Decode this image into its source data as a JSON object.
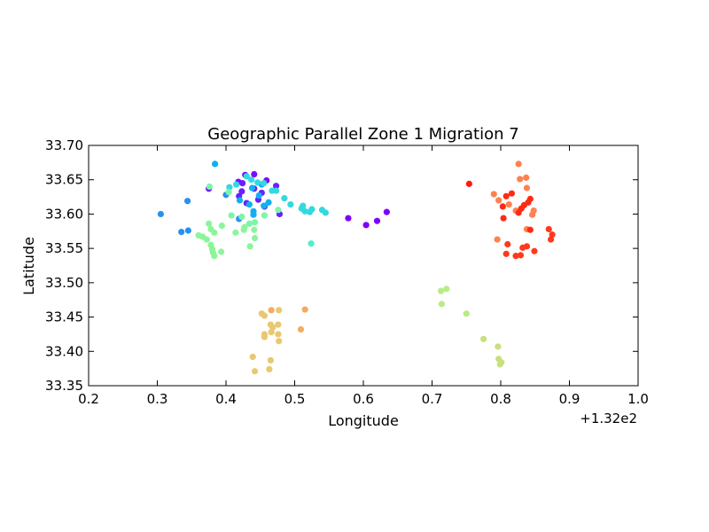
{
  "chart_data": {
    "type": "scatter",
    "title": "Geographic Parallel Zone 1 Migration 7",
    "xlabel": "Longitude",
    "ylabel": "Latitude",
    "x_offset_label": "+1.32e2",
    "xlim": [
      132.2,
      133.0
    ],
    "ylim": [
      33.35,
      33.7
    ],
    "xticks": [
      132.2,
      132.3,
      132.4,
      132.5,
      132.6,
      132.7,
      132.8,
      132.9,
      133.0
    ],
    "xtick_labels": [
      "0.2",
      "0.3",
      "0.4",
      "0.5",
      "0.6",
      "0.7",
      "0.8",
      "0.9",
      "1.0"
    ],
    "yticks": [
      33.35,
      33.4,
      33.45,
      33.5,
      33.55,
      33.6,
      33.65,
      33.7
    ],
    "ytick_labels": [
      "33.35",
      "33.40",
      "33.45",
      "33.50",
      "33.55",
      "33.60",
      "33.65",
      "33.70"
    ],
    "grid": false,
    "colormap": "rainbow",
    "points": [
      {
        "x": 132.428,
        "y": 33.657,
        "color": "#7a0dff"
      },
      {
        "x": 132.441,
        "y": 33.658,
        "color": "#7a0dff"
      },
      {
        "x": 132.459,
        "y": 33.649,
        "color": "#7a0dff"
      },
      {
        "x": 132.418,
        "y": 33.647,
        "color": "#7a0dff"
      },
      {
        "x": 132.424,
        "y": 33.645,
        "color": "#6a20ff"
      },
      {
        "x": 132.473,
        "y": 33.641,
        "color": "#6a20ff"
      },
      {
        "x": 132.452,
        "y": 33.631,
        "color": "#6a20ff"
      },
      {
        "x": 132.423,
        "y": 33.633,
        "color": "#6a20ff"
      },
      {
        "x": 132.441,
        "y": 33.637,
        "color": "#6a20ff"
      },
      {
        "x": 132.375,
        "y": 33.637,
        "color": "#6a20ff"
      },
      {
        "x": 132.419,
        "y": 33.626,
        "color": "#6a20ff"
      },
      {
        "x": 132.447,
        "y": 33.621,
        "color": "#6a20ff"
      },
      {
        "x": 132.43,
        "y": 33.616,
        "color": "#6a20ff"
      },
      {
        "x": 132.456,
        "y": 33.611,
        "color": "#6a20ff"
      },
      {
        "x": 132.478,
        "y": 33.6,
        "color": "#6a20ff"
      },
      {
        "x": 132.634,
        "y": 33.603,
        "color": "#8000ff"
      },
      {
        "x": 132.578,
        "y": 33.594,
        "color": "#8000ff"
      },
      {
        "x": 132.62,
        "y": 33.59,
        "color": "#8000ff"
      },
      {
        "x": 132.604,
        "y": 33.584,
        "color": "#8000ff"
      },
      {
        "x": 132.384,
        "y": 33.673,
        "color": "#10b0f0"
      },
      {
        "x": 132.4,
        "y": 33.628,
        "color": "#2a90f0"
      },
      {
        "x": 132.344,
        "y": 33.619,
        "color": "#2a90f0"
      },
      {
        "x": 132.305,
        "y": 33.6,
        "color": "#2a90f0"
      },
      {
        "x": 132.345,
        "y": 33.576,
        "color": "#2a90f0"
      },
      {
        "x": 132.335,
        "y": 33.574,
        "color": "#2a90f0"
      },
      {
        "x": 132.419,
        "y": 33.593,
        "color": "#2a90f0"
      },
      {
        "x": 132.438,
        "y": 33.638,
        "color": "#10b0f0"
      },
      {
        "x": 132.452,
        "y": 33.643,
        "color": "#10b0f0"
      },
      {
        "x": 132.42,
        "y": 33.62,
        "color": "#10b0f0"
      },
      {
        "x": 132.434,
        "y": 33.614,
        "color": "#10b0f0"
      },
      {
        "x": 132.44,
        "y": 33.604,
        "color": "#10b0f0"
      },
      {
        "x": 132.44,
        "y": 33.599,
        "color": "#10b0f0"
      },
      {
        "x": 132.448,
        "y": 33.627,
        "color": "#10b0f0"
      },
      {
        "x": 132.455,
        "y": 33.612,
        "color": "#10b0f0"
      },
      {
        "x": 132.462,
        "y": 33.617,
        "color": "#10b0f0"
      },
      {
        "x": 132.43,
        "y": 33.655,
        "color": "#34d8e0"
      },
      {
        "x": 132.437,
        "y": 33.65,
        "color": "#34d8e0"
      },
      {
        "x": 132.446,
        "y": 33.646,
        "color": "#34d8e0"
      },
      {
        "x": 132.455,
        "y": 33.645,
        "color": "#34d8e0"
      },
      {
        "x": 132.467,
        "y": 33.634,
        "color": "#34d8e0"
      },
      {
        "x": 132.473,
        "y": 33.634,
        "color": "#34d8e0"
      },
      {
        "x": 132.405,
        "y": 33.639,
        "color": "#34d8e0"
      },
      {
        "x": 132.415,
        "y": 33.643,
        "color": "#34d8e0"
      },
      {
        "x": 132.485,
        "y": 33.623,
        "color": "#34d8e0"
      },
      {
        "x": 132.494,
        "y": 33.614,
        "color": "#34d8e0"
      },
      {
        "x": 132.512,
        "y": 33.612,
        "color": "#34d8e0"
      },
      {
        "x": 132.51,
        "y": 33.608,
        "color": "#34d8e0"
      },
      {
        "x": 132.515,
        "y": 33.604,
        "color": "#34d8e0"
      },
      {
        "x": 132.522,
        "y": 33.603,
        "color": "#34d8e0"
      },
      {
        "x": 132.525,
        "y": 33.607,
        "color": "#34d8e0"
      },
      {
        "x": 132.54,
        "y": 33.606,
        "color": "#34d8e0"
      },
      {
        "x": 132.545,
        "y": 33.602,
        "color": "#34d8e0"
      },
      {
        "x": 132.524,
        "y": 33.557,
        "color": "#50f0c8"
      },
      {
        "x": 132.376,
        "y": 33.64,
        "color": "#7cf5a8"
      },
      {
        "x": 132.404,
        "y": 33.632,
        "color": "#7cf5a8"
      },
      {
        "x": 132.408,
        "y": 33.598,
        "color": "#7cf5a8"
      },
      {
        "x": 132.423,
        "y": 33.596,
        "color": "#7cf5a8"
      },
      {
        "x": 132.434,
        "y": 33.586,
        "color": "#7cf5a8"
      },
      {
        "x": 132.442,
        "y": 33.588,
        "color": "#7cf5a8"
      },
      {
        "x": 132.456,
        "y": 33.598,
        "color": "#7cf5a8"
      },
      {
        "x": 132.476,
        "y": 33.606,
        "color": "#7cf5a8"
      },
      {
        "x": 132.375,
        "y": 33.586,
        "color": "#8cf59a"
      },
      {
        "x": 132.378,
        "y": 33.578,
        "color": "#8cf59a"
      },
      {
        "x": 132.383,
        "y": 33.573,
        "color": "#8cf59a"
      },
      {
        "x": 132.394,
        "y": 33.583,
        "color": "#8cf59a"
      },
      {
        "x": 132.36,
        "y": 33.569,
        "color": "#8cf59a"
      },
      {
        "x": 132.366,
        "y": 33.567,
        "color": "#8cf59a"
      },
      {
        "x": 132.372,
        "y": 33.563,
        "color": "#8cf59a"
      },
      {
        "x": 132.378,
        "y": 33.555,
        "color": "#8cf59a"
      },
      {
        "x": 132.38,
        "y": 33.549,
        "color": "#8cf59a"
      },
      {
        "x": 132.381,
        "y": 33.544,
        "color": "#8cf59a"
      },
      {
        "x": 132.383,
        "y": 33.539,
        "color": "#8cf59a"
      },
      {
        "x": 132.393,
        "y": 33.545,
        "color": "#8cf59a"
      },
      {
        "x": 132.414,
        "y": 33.573,
        "color": "#8cf59a"
      },
      {
        "x": 132.426,
        "y": 33.577,
        "color": "#8cf59a"
      },
      {
        "x": 132.427,
        "y": 33.581,
        "color": "#8cf59a"
      },
      {
        "x": 132.441,
        "y": 33.577,
        "color": "#8cf59a"
      },
      {
        "x": 132.442,
        "y": 33.565,
        "color": "#8cf59a"
      },
      {
        "x": 132.435,
        "y": 33.553,
        "color": "#8cf59a"
      },
      {
        "x": 132.713,
        "y": 33.488,
        "color": "#b8ec84"
      },
      {
        "x": 132.721,
        "y": 33.491,
        "color": "#b8ec84"
      },
      {
        "x": 132.714,
        "y": 33.469,
        "color": "#b8ec84"
      },
      {
        "x": 132.75,
        "y": 33.455,
        "color": "#b8ec84"
      },
      {
        "x": 132.775,
        "y": 33.418,
        "color": "#c8e07e"
      },
      {
        "x": 132.796,
        "y": 33.407,
        "color": "#c8e07e"
      },
      {
        "x": 132.797,
        "y": 33.389,
        "color": "#c8e07e"
      },
      {
        "x": 132.801,
        "y": 33.384,
        "color": "#c8e07e"
      },
      {
        "x": 132.799,
        "y": 33.381,
        "color": "#c8e07e"
      },
      {
        "x": 132.477,
        "y": 33.46,
        "color": "#e8c870"
      },
      {
        "x": 132.452,
        "y": 33.455,
        "color": "#e8c870"
      },
      {
        "x": 132.456,
        "y": 33.452,
        "color": "#e8c870"
      },
      {
        "x": 132.465,
        "y": 33.439,
        "color": "#e8c870"
      },
      {
        "x": 132.468,
        "y": 33.435,
        "color": "#e8c870"
      },
      {
        "x": 132.476,
        "y": 33.439,
        "color": "#e8c870"
      },
      {
        "x": 132.456,
        "y": 33.425,
        "color": "#e8c870"
      },
      {
        "x": 132.456,
        "y": 33.421,
        "color": "#e8c870"
      },
      {
        "x": 132.466,
        "y": 33.428,
        "color": "#e8c870"
      },
      {
        "x": 132.476,
        "y": 33.425,
        "color": "#e8c870"
      },
      {
        "x": 132.477,
        "y": 33.415,
        "color": "#e8c870"
      },
      {
        "x": 132.439,
        "y": 33.392,
        "color": "#e8c870"
      },
      {
        "x": 132.465,
        "y": 33.387,
        "color": "#e8c870"
      },
      {
        "x": 132.463,
        "y": 33.374,
        "color": "#e8c870"
      },
      {
        "x": 132.442,
        "y": 33.371,
        "color": "#e8c870"
      },
      {
        "x": 132.515,
        "y": 33.461,
        "color": "#f5aa60"
      },
      {
        "x": 132.466,
        "y": 33.46,
        "color": "#f5aa60"
      },
      {
        "x": 132.509,
        "y": 33.432,
        "color": "#f5aa60"
      },
      {
        "x": 132.826,
        "y": 33.673,
        "color": "#ff8050"
      },
      {
        "x": 132.837,
        "y": 33.653,
        "color": "#ff8050"
      },
      {
        "x": 132.828,
        "y": 33.651,
        "color": "#ff8050"
      },
      {
        "x": 132.838,
        "y": 33.638,
        "color": "#ff8050"
      },
      {
        "x": 132.79,
        "y": 33.629,
        "color": "#ff8050"
      },
      {
        "x": 132.797,
        "y": 33.62,
        "color": "#ff8050"
      },
      {
        "x": 132.812,
        "y": 33.614,
        "color": "#ff8050"
      },
      {
        "x": 132.822,
        "y": 33.605,
        "color": "#ff8050"
      },
      {
        "x": 132.848,
        "y": 33.605,
        "color": "#ff8050"
      },
      {
        "x": 132.846,
        "y": 33.599,
        "color": "#ff8050"
      },
      {
        "x": 132.838,
        "y": 33.578,
        "color": "#ff8050"
      },
      {
        "x": 132.795,
        "y": 33.563,
        "color": "#ff8050"
      },
      {
        "x": 132.754,
        "y": 33.644,
        "color": "#ff1a0d"
      },
      {
        "x": 132.816,
        "y": 33.63,
        "color": "#ff2a15"
      },
      {
        "x": 132.808,
        "y": 33.626,
        "color": "#ff2a15"
      },
      {
        "x": 132.803,
        "y": 33.611,
        "color": "#ff2a15"
      },
      {
        "x": 132.804,
        "y": 33.594,
        "color": "#ff2a15"
      },
      {
        "x": 132.826,
        "y": 33.602,
        "color": "#ff2a15"
      },
      {
        "x": 132.83,
        "y": 33.608,
        "color": "#ff2a15"
      },
      {
        "x": 132.834,
        "y": 33.613,
        "color": "#ff2a15"
      },
      {
        "x": 132.843,
        "y": 33.622,
        "color": "#ff2a15"
      },
      {
        "x": 132.84,
        "y": 33.617,
        "color": "#ff2a15"
      },
      {
        "x": 132.843,
        "y": 33.577,
        "color": "#ff2a15"
      },
      {
        "x": 132.87,
        "y": 33.578,
        "color": "#ff3a1c"
      },
      {
        "x": 132.875,
        "y": 33.57,
        "color": "#ff3a1c"
      },
      {
        "x": 132.873,
        "y": 33.563,
        "color": "#ff3a1c"
      },
      {
        "x": 132.81,
        "y": 33.556,
        "color": "#ff3a1c"
      },
      {
        "x": 132.832,
        "y": 33.551,
        "color": "#ff3a1c"
      },
      {
        "x": 132.838,
        "y": 33.553,
        "color": "#ff3a1c"
      },
      {
        "x": 132.849,
        "y": 33.546,
        "color": "#ff3a1c"
      },
      {
        "x": 132.808,
        "y": 33.542,
        "color": "#ff3a1c"
      },
      {
        "x": 132.822,
        "y": 33.539,
        "color": "#ff3a1c"
      },
      {
        "x": 132.829,
        "y": 33.54,
        "color": "#ff3a1c"
      }
    ]
  }
}
